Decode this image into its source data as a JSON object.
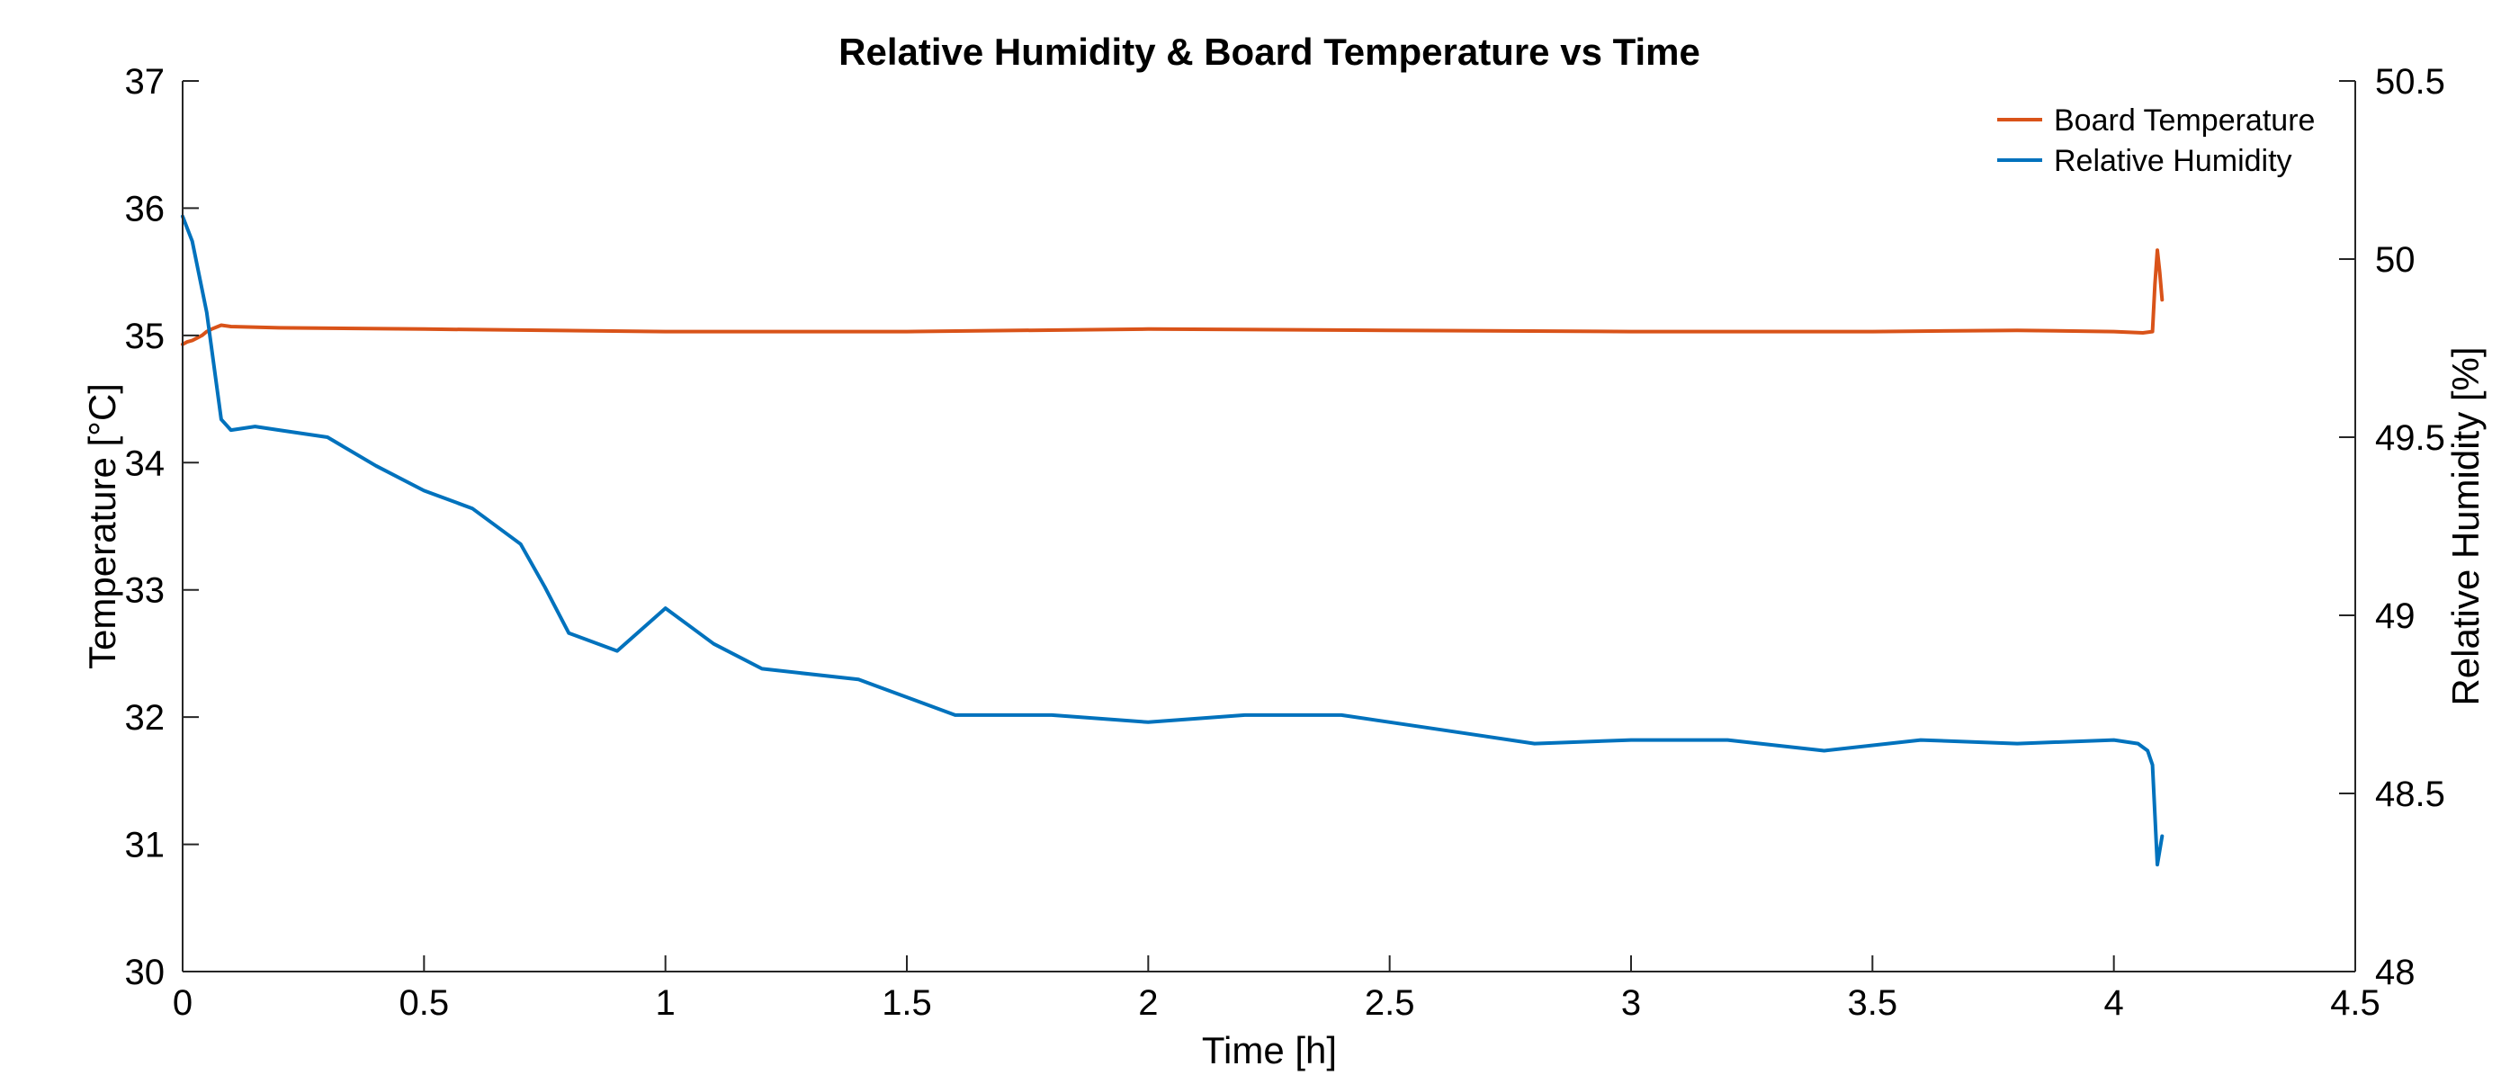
{
  "chart_data": {
    "type": "line",
    "title": "Relative Humidity & Board Temperature vs Time",
    "xlabel": "Time [h]",
    "ylabel_left": "Temperature [°C]",
    "ylabel_right": "Relative Humidity [%]",
    "xlim": [
      0,
      4.5
    ],
    "ylim_left": [
      30,
      37
    ],
    "ylim_right": [
      48,
      50.5
    ],
    "x_ticks": [
      "0",
      "0.5",
      "1",
      "1.5",
      "2",
      "2.5",
      "3",
      "3.5",
      "4",
      "4.5"
    ],
    "y_ticks_left": [
      "30",
      "31",
      "32",
      "33",
      "34",
      "35",
      "36",
      "37"
    ],
    "y_ticks_right": [
      "48",
      "48.5",
      "49",
      "49.5",
      "50",
      "50.5"
    ],
    "grid": false,
    "legend_position": "top-right",
    "series": [
      {
        "name": "Board Temperature",
        "axis": "left",
        "color": "#D95319",
        "x": [
          0,
          0.01,
          0.02,
          0.03,
          0.04,
          0.05,
          0.06,
          0.08,
          0.1,
          0.2,
          0.5,
          1.0,
          1.5,
          2.0,
          2.5,
          3.0,
          3.5,
          3.8,
          4.0,
          4.06,
          4.08,
          4.085,
          4.09,
          4.095,
          4.1
        ],
        "y": [
          34.93,
          34.95,
          34.96,
          34.98,
          35.0,
          35.03,
          35.05,
          35.08,
          35.07,
          35.06,
          35.05,
          35.03,
          35.03,
          35.05,
          35.04,
          35.03,
          35.03,
          35.04,
          35.03,
          35.02,
          35.03,
          35.4,
          35.67,
          35.5,
          35.28
        ]
      },
      {
        "name": "Relative Humidity",
        "axis": "right",
        "color": "#0072BD",
        "x": [
          0,
          0.02,
          0.05,
          0.08,
          0.1,
          0.15,
          0.2,
          0.3,
          0.4,
          0.5,
          0.6,
          0.7,
          0.75,
          0.8,
          0.9,
          1.0,
          1.1,
          1.2,
          1.4,
          1.6,
          1.8,
          2.0,
          2.2,
          2.4,
          2.6,
          2.8,
          3.0,
          3.2,
          3.4,
          3.6,
          3.8,
          4.0,
          4.05,
          4.07,
          4.08,
          4.09,
          4.1
        ],
        "y": [
          50.12,
          50.05,
          49.85,
          49.55,
          49.52,
          49.53,
          49.52,
          49.5,
          49.42,
          49.35,
          49.3,
          49.2,
          49.08,
          48.95,
          48.9,
          49.02,
          48.92,
          48.85,
          48.82,
          48.72,
          48.72,
          48.7,
          48.72,
          48.72,
          48.68,
          48.64,
          48.65,
          48.65,
          48.62,
          48.65,
          48.64,
          48.65,
          48.64,
          48.62,
          48.58,
          48.3,
          48.38
        ]
      }
    ]
  }
}
